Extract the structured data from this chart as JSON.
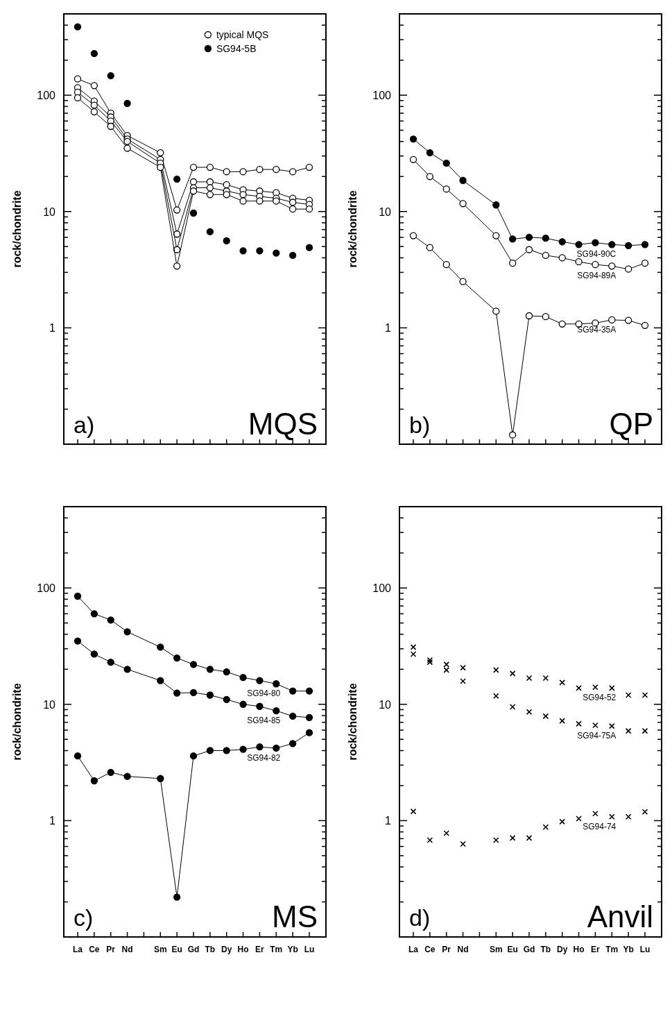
{
  "chart_data": [
    {
      "type": "line",
      "ylabel": "rock/chondrite",
      "log": true,
      "marker": "circle",
      "legend": "top",
      "ylim": [
        0.1,
        500
      ],
      "yticks": [
        {
          "value": 0.2,
          "label": null
        },
        {
          "value": 0.3,
          "label": null
        },
        {
          "value": 0.4,
          "label": null
        },
        {
          "value": 0.5,
          "label": null
        },
        {
          "value": 0.6,
          "label": null
        },
        {
          "value": 0.7,
          "label": null
        },
        {
          "value": 0.8,
          "label": null
        },
        {
          "value": 0.9,
          "label": null
        },
        1,
        {
          "value": 2,
          "label": null
        },
        {
          "value": 3,
          "label": null
        },
        {
          "value": 4,
          "label": null
        },
        {
          "value": 5,
          "label": null
        },
        {
          "value": 6,
          "label": null
        },
        {
          "value": 7,
          "label": null
        },
        {
          "value": 8,
          "label": null
        },
        {
          "value": 9,
          "label": null
        },
        10,
        {
          "value": 20,
          "label": null
        },
        {
          "value": 30,
          "label": null
        },
        {
          "value": 40,
          "label": null
        },
        {
          "value": 50,
          "label": null
        },
        {
          "value": 60,
          "label": null
        },
        {
          "value": 70,
          "label": null
        },
        {
          "value": 80,
          "label": null
        },
        {
          "value": 90,
          "label": null
        },
        100,
        {
          "value": 200,
          "label": null
        },
        {
          "value": 300,
          "label": null
        },
        {
          "value": 400,
          "label": null
        },
        {
          "value": 500,
          "label": null
        }
      ],
      "categories": [
        null,
        null,
        null,
        null,
        null,
        null,
        null,
        null,
        null,
        null,
        null,
        null,
        null,
        null,
        null
      ],
      "annotations": [
        "a)",
        "MQS"
      ],
      "series": [
        {
          "name": "typical MQS",
          "color": "#ffffff",
          "values": [
            138,
            121,
            70,
            45,
            null,
            32,
            10.3,
            24,
            24,
            22,
            22,
            23,
            23,
            22,
            24
          ]
        },
        {
          "color": "#ffffff",
          "values": [
            116,
            89,
            65,
            42,
            null,
            28,
            6.4,
            18,
            18,
            17,
            15.4,
            15,
            14.5,
            13,
            12.5
          ]
        },
        {
          "color": "#ffffff",
          "values": [
            106,
            82,
            60,
            40,
            null,
            26,
            4.7,
            16,
            16,
            15,
            14,
            13.5,
            13,
            12,
            11.5
          ]
        },
        {
          "color": "#ffffff",
          "values": [
            95,
            72,
            54,
            35,
            null,
            24,
            3.4,
            15,
            14,
            14,
            12.3,
            12.3,
            12.3,
            10.5,
            10.5
          ]
        },
        {
          "name": "SG94-5B",
          "type": "scatter",
          "color": "#000000",
          "values": [
            387,
            228,
            147,
            85,
            null,
            null,
            19,
            9.7,
            6.7,
            5.6,
            4.6,
            4.6,
            4.4,
            4.2,
            4.9
          ]
        }
      ]
    },
    {
      "type": "line",
      "ylabel": "rock/chondrite",
      "log": true,
      "marker": "circle",
      "ylim": [
        0.1,
        500
      ],
      "yticks": [
        {
          "value": 0.2,
          "label": null
        },
        {
          "value": 0.3,
          "label": null
        },
        {
          "value": 0.4,
          "label": null
        },
        {
          "value": 0.5,
          "label": null
        },
        {
          "value": 0.6,
          "label": null
        },
        {
          "value": 0.7,
          "label": null
        },
        {
          "value": 0.8,
          "label": null
        },
        {
          "value": 0.9,
          "label": null
        },
        1,
        {
          "value": 2,
          "label": null
        },
        {
          "value": 3,
          "label": null
        },
        {
          "value": 4,
          "label": null
        },
        {
          "value": 5,
          "label": null
        },
        {
          "value": 6,
          "label": null
        },
        {
          "value": 7,
          "label": null
        },
        {
          "value": 8,
          "label": null
        },
        {
          "value": 9,
          "label": null
        },
        10,
        {
          "value": 20,
          "label": null
        },
        {
          "value": 30,
          "label": null
        },
        {
          "value": 40,
          "label": null
        },
        {
          "value": 50,
          "label": null
        },
        {
          "value": 60,
          "label": null
        },
        {
          "value": 70,
          "label": null
        },
        {
          "value": 80,
          "label": null
        },
        {
          "value": 90,
          "label": null
        },
        100,
        {
          "value": 200,
          "label": null
        },
        {
          "value": 300,
          "label": null
        },
        {
          "value": 400,
          "label": null
        },
        {
          "value": 500,
          "label": null
        }
      ],
      "categories": [
        null,
        null,
        null,
        null,
        null,
        null,
        null,
        null,
        null,
        null,
        null,
        null,
        null,
        null,
        null
      ],
      "annotations": [
        "b)",
        "QP"
      ],
      "series": [
        {
          "name": "SG94-90C",
          "color": "#000000",
          "values": [
            42,
            32,
            26,
            18.5,
            null,
            11.4,
            5.8,
            6.0,
            5.9,
            5.5,
            5.2,
            5.4,
            5.2,
            5.1,
            5.2
          ]
        },
        {
          "name": "SG94-89A",
          "color": "#ffffff",
          "values": [
            28,
            20,
            15.6,
            11.7,
            null,
            6.2,
            3.6,
            4.7,
            4.2,
            4.0,
            3.7,
            3.5,
            3.4,
            3.2,
            3.6
          ]
        },
        {
          "name": "SG94-35A",
          "color": "#ffffff",
          "values": [
            6.2,
            4.9,
            3.5,
            2.5,
            null,
            1.39,
            0.12,
            1.27,
            1.25,
            1.08,
            1.08,
            1.1,
            1.17,
            1.16,
            1.05
          ]
        }
      ]
    },
    {
      "type": "line",
      "ylabel": "rock/chondrite",
      "log": true,
      "marker": "circle",
      "ylim": [
        0.1,
        500
      ],
      "yticks": [
        {
          "value": 0.2,
          "label": null
        },
        {
          "value": 0.3,
          "label": null
        },
        {
          "value": 0.4,
          "label": null
        },
        {
          "value": 0.5,
          "label": null
        },
        {
          "value": 0.6,
          "label": null
        },
        {
          "value": 0.7,
          "label": null
        },
        {
          "value": 0.8,
          "label": null
        },
        {
          "value": 0.9,
          "label": null
        },
        1,
        {
          "value": 2,
          "label": null
        },
        {
          "value": 3,
          "label": null
        },
        {
          "value": 4,
          "label": null
        },
        {
          "value": 5,
          "label": null
        },
        {
          "value": 6,
          "label": null
        },
        {
          "value": 7,
          "label": null
        },
        {
          "value": 8,
          "label": null
        },
        {
          "value": 9,
          "label": null
        },
        10,
        {
          "value": 20,
          "label": null
        },
        {
          "value": 30,
          "label": null
        },
        {
          "value": 40,
          "label": null
        },
        {
          "value": 50,
          "label": null
        },
        {
          "value": 60,
          "label": null
        },
        {
          "value": 70,
          "label": null
        },
        {
          "value": 80,
          "label": null
        },
        {
          "value": 90,
          "label": null
        },
        100,
        {
          "value": 200,
          "label": null
        },
        {
          "value": 300,
          "label": null
        },
        {
          "value": 400,
          "label": null
        },
        {
          "value": 500,
          "label": null
        }
      ],
      "categories": [
        "La",
        "Ce",
        "Pr",
        "Nd",
        null,
        "Sm",
        "Eu",
        "Gd",
        "Tb",
        "Dy",
        "Ho",
        "Er",
        "Tm",
        "Yb",
        "Lu"
      ],
      "annotations": [
        "c)",
        "MS"
      ],
      "series": [
        {
          "name": "SG94-80",
          "color": "#000000",
          "values": [
            85,
            60,
            53,
            42,
            null,
            31,
            25,
            22,
            20,
            19,
            17,
            16,
            15,
            13,
            13
          ]
        },
        {
          "name": "SG94-85",
          "color": "#000000",
          "values": [
            35,
            27,
            23,
            20,
            null,
            16,
            12.5,
            12.6,
            12,
            11,
            10,
            9.6,
            8.8,
            7.9,
            7.7
          ]
        },
        {
          "name": "SG94-82",
          "color": "#000000",
          "values": [
            3.6,
            2.2,
            2.6,
            2.4,
            null,
            2.3,
            0.22,
            3.6,
            4.0,
            4.0,
            4.1,
            4.3,
            4.2,
            4.6,
            5.7
          ]
        }
      ]
    },
    {
      "type": "scatter",
      "ylabel": "rock/chondrite",
      "log": true,
      "marker": "cross",
      "ylim": [
        0.1,
        500
      ],
      "yticks": [
        {
          "value": 0.2,
          "label": null
        },
        {
          "value": 0.3,
          "label": null
        },
        {
          "value": 0.4,
          "label": null
        },
        {
          "value": 0.5,
          "label": null
        },
        {
          "value": 0.6,
          "label": null
        },
        {
          "value": 0.7,
          "label": null
        },
        {
          "value": 0.8,
          "label": null
        },
        {
          "value": 0.9,
          "label": null
        },
        1,
        {
          "value": 2,
          "label": null
        },
        {
          "value": 3,
          "label": null
        },
        {
          "value": 4,
          "label": null
        },
        {
          "value": 5,
          "label": null
        },
        {
          "value": 6,
          "label": null
        },
        {
          "value": 7,
          "label": null
        },
        {
          "value": 8,
          "label": null
        },
        {
          "value": 9,
          "label": null
        },
        10,
        {
          "value": 20,
          "label": null
        },
        {
          "value": 30,
          "label": null
        },
        {
          "value": 40,
          "label": null
        },
        {
          "value": 50,
          "label": null
        },
        {
          "value": 60,
          "label": null
        },
        {
          "value": 70,
          "label": null
        },
        {
          "value": 80,
          "label": null
        },
        {
          "value": 90,
          "label": null
        },
        100,
        {
          "value": 200,
          "label": null
        },
        {
          "value": 300,
          "label": null
        },
        {
          "value": 400,
          "label": null
        },
        {
          "value": 500,
          "label": null
        }
      ],
      "categories": [
        "La",
        "Ce",
        "Pr",
        "Nd",
        null,
        "Sm",
        "Eu",
        "Gd",
        "Tb",
        "Dy",
        "Ho",
        "Er",
        "Tm",
        "Yb",
        "Lu"
      ],
      "annotations": [
        "d)",
        "Anvil"
      ],
      "series": [
        {
          "name": "SG94-52",
          "color": "#000000",
          "values": [
            31,
            24,
            22,
            20.6,
            null,
            19.7,
            18.4,
            16.8,
            16.8,
            15.4,
            13.8,
            14,
            13.8,
            12,
            12
          ]
        },
        {
          "name": "SG94-75A",
          "color": "#000000",
          "values": [
            27,
            23,
            19.7,
            15.8,
            null,
            11.8,
            9.5,
            8.6,
            7.9,
            7.2,
            6.8,
            6.6,
            6.5,
            5.9,
            5.9
          ]
        },
        {
          "name": "SG94-74",
          "color": "#000000",
          "values": [
            1.2,
            0.68,
            0.78,
            0.63,
            null,
            0.68,
            0.71,
            0.71,
            0.88,
            0.98,
            1.04,
            1.15,
            1.08,
            1.08,
            1.19
          ]
        }
      ]
    }
  ]
}
